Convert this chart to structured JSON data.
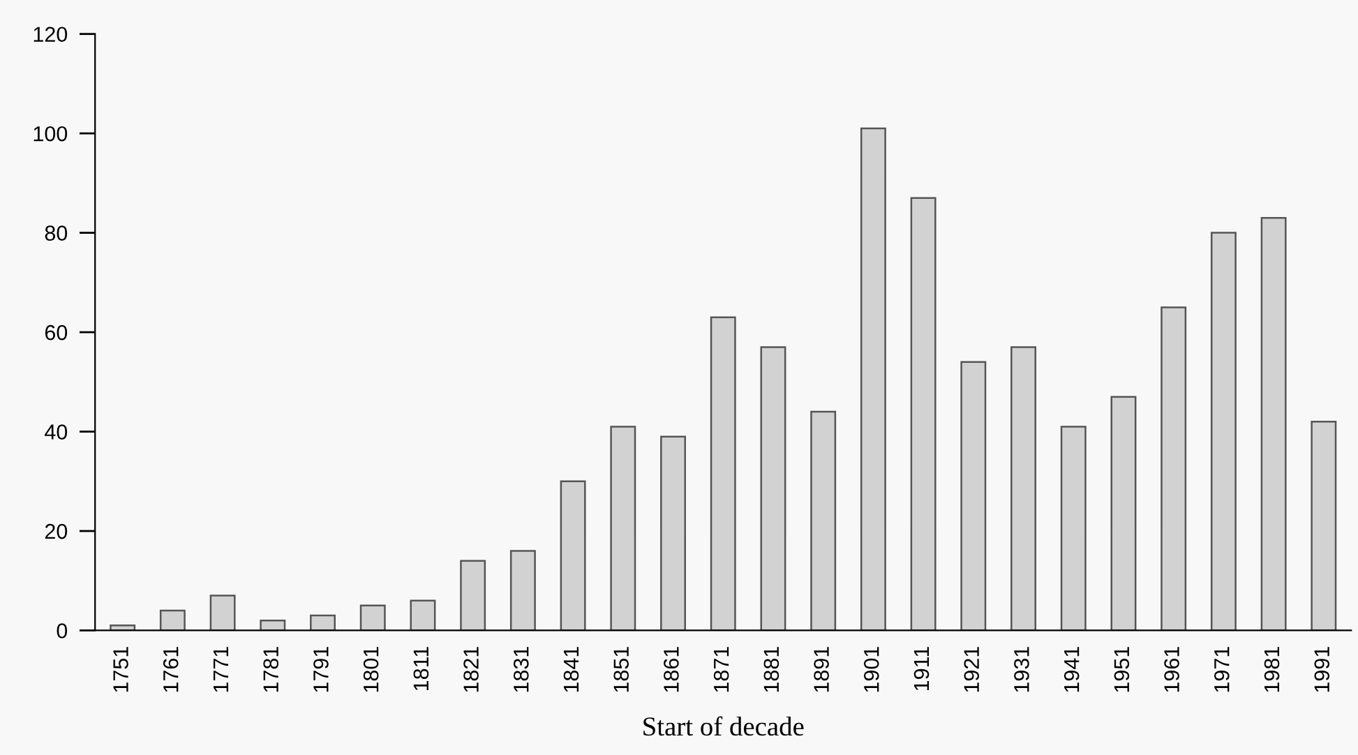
{
  "chart_data": {
    "type": "bar",
    "xlabel": "Start of decade",
    "categories": [
      "1751",
      "1761",
      "1771",
      "1781",
      "1791",
      "1801",
      "1811",
      "1821",
      "1831",
      "1841",
      "1851",
      "1861",
      "1871",
      "1881",
      "1891",
      "1901",
      "1911",
      "1921",
      "1931",
      "1941",
      "1951",
      "1961",
      "1971",
      "1981",
      "1991"
    ],
    "values": [
      1,
      4,
      7,
      2,
      3,
      5,
      6,
      14,
      16,
      30,
      41,
      39,
      63,
      57,
      44,
      101,
      87,
      54,
      57,
      41,
      47,
      65,
      80,
      83,
      42
    ],
    "color": "#d2d2d2",
    "ylim": [
      0,
      120
    ],
    "yticks": [
      0,
      20,
      40,
      60,
      80,
      100,
      120
    ],
    "grid": false,
    "legend": false
  }
}
